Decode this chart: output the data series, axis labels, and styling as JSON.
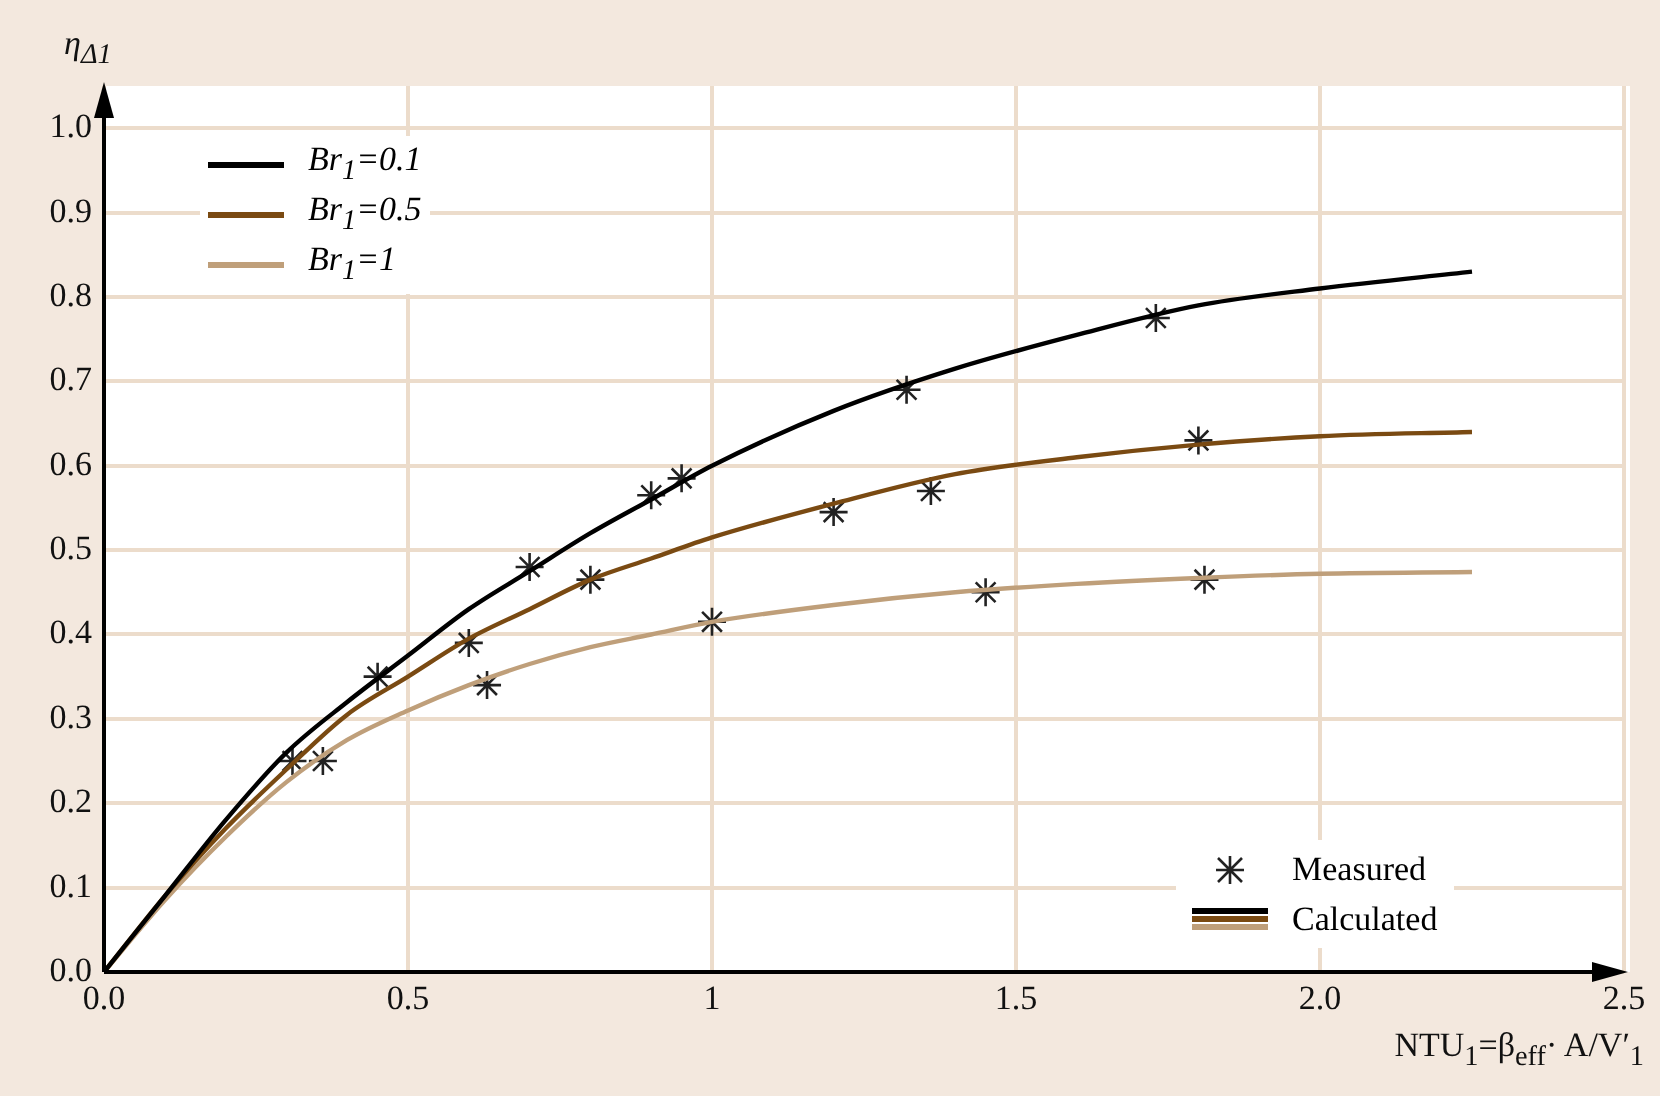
{
  "chart_data": {
    "type": "line",
    "xlabel": "NTU$_{1}$=β$_{eff}$· A/V′$_{1}$",
    "ylabel": "η$_{Δ1}$",
    "xlim": [
      0,
      2.5
    ],
    "xticks": [
      {
        "value": 0,
        "label": "0.0"
      },
      0.5,
      {
        "value": 1,
        "label": "1"
      },
      1.5,
      {
        "value": 2,
        "label": "2.0"
      },
      2.5
    ],
    "ylim": [
      0,
      1.05
    ],
    "yticks": [
      {
        "value": 0,
        "label": "0.0"
      },
      0.1,
      0.2,
      0.3,
      0.4,
      0.5,
      0.6,
      0.7,
      0.8,
      0.9,
      {
        "value": 1,
        "label": "1.0"
      }
    ],
    "grid": true,
    "legend": "top left",
    "annotations": [
      "Calculated"
    ],
    "series": [
      {
        "name": "Br$_{1}$=0.1",
        "color": "#000000",
        "marker": "none",
        "x": [
          0,
          0.1,
          0.2,
          0.3,
          0.4,
          0.5,
          0.6,
          0.7,
          0.8,
          0.9,
          1.0,
          1.2,
          1.4,
          1.6,
          1.8,
          2.0,
          2.25
        ],
        "values": [
          0,
          0.09,
          0.18,
          0.26,
          0.32,
          0.375,
          0.43,
          0.475,
          0.52,
          0.56,
          0.6,
          0.665,
          0.715,
          0.755,
          0.79,
          0.81,
          0.83
        ]
      },
      {
        "name": "Br$_{1}$=0.5",
        "color": "#7a4a12",
        "marker": "none",
        "x": [
          0,
          0.1,
          0.2,
          0.3,
          0.4,
          0.5,
          0.6,
          0.7,
          0.8,
          0.9,
          1.0,
          1.2,
          1.4,
          1.6,
          1.8,
          2.0,
          2.25
        ],
        "values": [
          0,
          0.09,
          0.17,
          0.24,
          0.305,
          0.35,
          0.395,
          0.43,
          0.465,
          0.49,
          0.515,
          0.555,
          0.59,
          0.61,
          0.625,
          0.635,
          0.64
        ]
      },
      {
        "name": "Br$_{1}$=1",
        "color": "#bf9f7a",
        "marker": "none",
        "x": [
          0,
          0.1,
          0.2,
          0.3,
          0.4,
          0.5,
          0.6,
          0.7,
          0.8,
          0.9,
          1.0,
          1.2,
          1.4,
          1.6,
          1.8,
          2.0,
          2.25
        ],
        "values": [
          0,
          0.085,
          0.16,
          0.225,
          0.275,
          0.31,
          0.34,
          0.365,
          0.385,
          0.4,
          0.415,
          0.435,
          0.45,
          0.46,
          0.467,
          0.472,
          0.474
        ]
      },
      {
        "name": "Measured",
        "color": "#222222",
        "type": "scatter",
        "marker": "cross",
        "x": [
          0.31,
          0.36,
          0.45,
          0.6,
          0.63,
          0.7,
          0.8,
          0.9,
          0.95,
          1.0,
          1.2,
          1.32,
          1.36,
          1.45,
          1.73,
          1.8,
          1.81
        ],
        "values": [
          0.25,
          0.25,
          0.35,
          0.39,
          0.34,
          0.48,
          0.465,
          0.565,
          0.585,
          0.415,
          0.545,
          0.69,
          0.57,
          0.45,
          0.775,
          0.63,
          0.465
        ]
      }
    ]
  }
}
